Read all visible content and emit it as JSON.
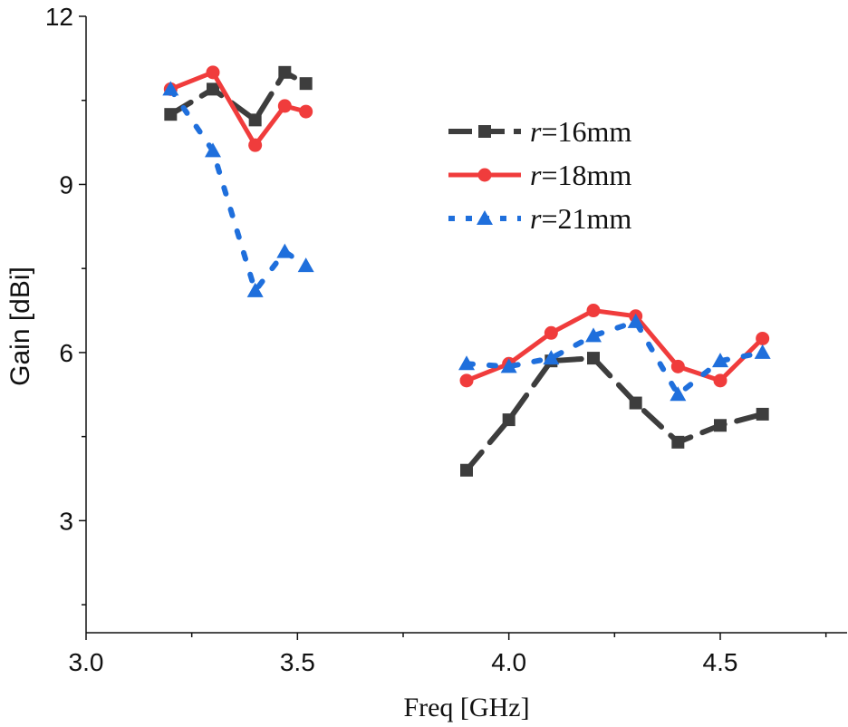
{
  "chart_data": {
    "type": "line",
    "title": "",
    "xlabel": "Freq [GHz]",
    "ylabel": "Gain [dBi]",
    "xlim": [
      3.0,
      4.8
    ],
    "ylim": [
      1.0,
      12.0
    ],
    "xticks": [
      "3.0",
      "3.5",
      "4.0",
      "4.5"
    ],
    "yticks": [
      "3",
      "6",
      "9",
      "12"
    ],
    "grid": false,
    "legend_position": "top-right",
    "series": [
      {
        "name": "r=16mm",
        "var": "r",
        "rest": "=16mm",
        "color": "#3d3d3d",
        "marker": "square",
        "dash": "dash",
        "x": [
          3.2,
          3.3,
          3.4,
          3.47,
          3.52,
          3.9,
          4.0,
          4.1,
          4.2,
          4.3,
          4.4,
          4.5,
          4.6
        ],
        "y": [
          10.25,
          10.7,
          10.15,
          11.0,
          10.8,
          3.9,
          4.8,
          5.85,
          5.9,
          5.1,
          4.4,
          4.7,
          4.9
        ]
      },
      {
        "name": "r=18mm",
        "var": "r",
        "rest": "=18mm",
        "color": "#f03c3c",
        "marker": "circle",
        "dash": "solid",
        "x": [
          3.2,
          3.3,
          3.4,
          3.47,
          3.52,
          3.9,
          4.0,
          4.1,
          4.2,
          4.3,
          4.4,
          4.5,
          4.6
        ],
        "y": [
          10.7,
          11.0,
          9.7,
          10.4,
          10.3,
          5.5,
          5.8,
          6.35,
          6.75,
          6.65,
          5.75,
          5.5,
          6.25
        ]
      },
      {
        "name": "r=21mm",
        "var": "r",
        "rest": "=21mm",
        "color": "#1f6fdc",
        "marker": "triangle",
        "dash": "dot",
        "x": [
          3.2,
          3.3,
          3.4,
          3.47,
          3.52,
          3.9,
          4.0,
          4.1,
          4.2,
          4.3,
          4.4,
          4.5,
          4.6
        ],
        "y": [
          10.7,
          9.6,
          7.1,
          7.8,
          7.55,
          5.8,
          5.75,
          5.9,
          6.3,
          6.55,
          5.25,
          5.85,
          6.0
        ]
      }
    ]
  }
}
